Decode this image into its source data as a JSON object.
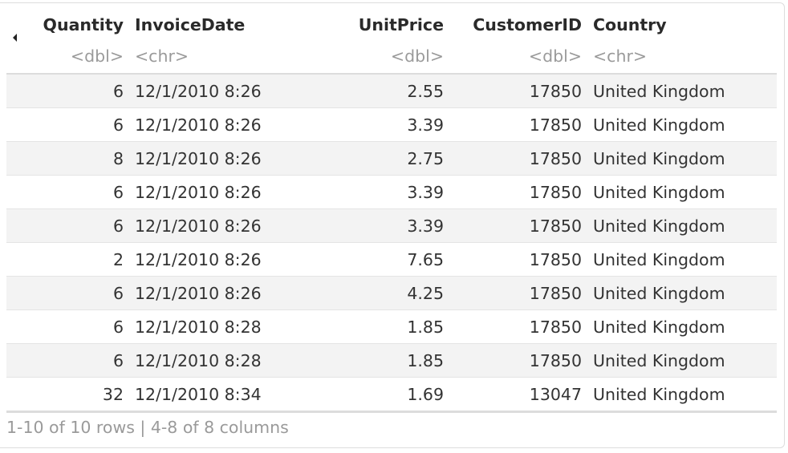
{
  "table": {
    "columns": [
      {
        "name": "Quantity",
        "type": "<dbl>",
        "align": "right"
      },
      {
        "name": "InvoiceDate",
        "type": "<chr>",
        "align": "left"
      },
      {
        "name": "UnitPrice",
        "type": "<dbl>",
        "align": "right"
      },
      {
        "name": "CustomerID",
        "type": "<dbl>",
        "align": "right"
      },
      {
        "name": "Country",
        "type": "<chr>",
        "align": "left"
      }
    ],
    "rows": [
      [
        "6",
        "12/1/2010 8:26",
        "2.55",
        "17850",
        "United Kingdom"
      ],
      [
        "6",
        "12/1/2010 8:26",
        "3.39",
        "17850",
        "United Kingdom"
      ],
      [
        "8",
        "12/1/2010 8:26",
        "2.75",
        "17850",
        "United Kingdom"
      ],
      [
        "6",
        "12/1/2010 8:26",
        "3.39",
        "17850",
        "United Kingdom"
      ],
      [
        "6",
        "12/1/2010 8:26",
        "3.39",
        "17850",
        "United Kingdom"
      ],
      [
        "2",
        "12/1/2010 8:26",
        "7.65",
        "17850",
        "United Kingdom"
      ],
      [
        "6",
        "12/1/2010 8:26",
        "4.25",
        "17850",
        "United Kingdom"
      ],
      [
        "6",
        "12/1/2010 8:28",
        "1.85",
        "17850",
        "United Kingdom"
      ],
      [
        "6",
        "12/1/2010 8:28",
        "1.85",
        "17850",
        "United Kingdom"
      ],
      [
        "32",
        "12/1/2010 8:34",
        "1.69",
        "13047",
        "United Kingdom"
      ]
    ]
  },
  "footer": {
    "summary": "1-10 of 10 rows | 4-8 of 8 columns"
  },
  "icons": {
    "prev_columns": "caret-left-icon"
  },
  "colors": {
    "stripe": "#f3f3f3",
    "header_text": "#2a2a2a",
    "type_text": "#9a9a9a",
    "body_text": "#333333"
  }
}
